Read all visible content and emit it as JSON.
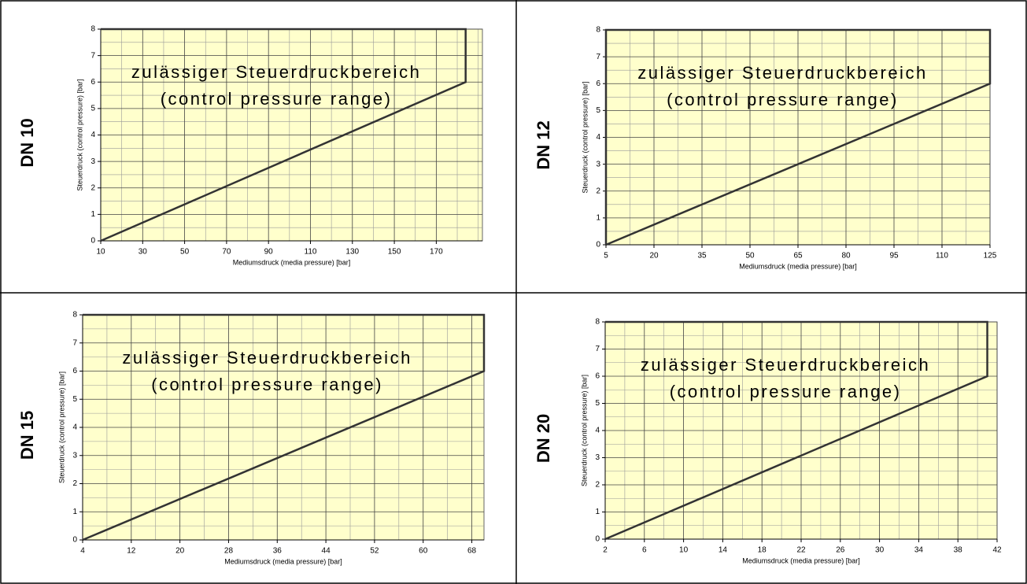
{
  "chart_data": [
    {
      "type": "line",
      "label": "DN 10",
      "annotation": [
        "zulässiger Steuerdruckbereich",
        "(control pressure range)"
      ],
      "xlabel": "Mediumsdruck (media pressure) [bar]",
      "ylabel": "Steuerdruck (control pressure) [bar]",
      "x": [
        10,
        184,
        184,
        10
      ],
      "values": [
        0,
        6,
        8,
        8
      ],
      "color": "#333333",
      "xlim": [
        10,
        192
      ],
      "xticks": [
        10,
        30,
        50,
        70,
        90,
        110,
        130,
        150,
        170
      ],
      "ylim": [
        0,
        8
      ],
      "yticks": [
        0,
        1,
        2,
        3,
        4,
        5,
        6,
        7,
        8
      ],
      "grid": true
    },
    {
      "type": "line",
      "label": "DN 12",
      "annotation": [
        "zulässiger Steuerdruckbereich",
        "(control pressure range)"
      ],
      "xlabel": "Mediumsdruck (media pressure) [bar]",
      "ylabel": "Steuerdruck (control pressure) [bar]",
      "x": [
        5,
        125,
        125,
        5,
        5
      ],
      "values": [
        0,
        6,
        8,
        8,
        0
      ],
      "color": "#333333",
      "xlim": [
        5,
        125
      ],
      "xticks": [
        5,
        20,
        35,
        50,
        65,
        80,
        95,
        110,
        125
      ],
      "ylim": [
        0,
        8
      ],
      "yticks": [
        0,
        1,
        2,
        3,
        4,
        5,
        6,
        7,
        8
      ],
      "grid": true
    },
    {
      "type": "line",
      "label": "DN 15",
      "annotation": [
        "zulässiger Steuerdruckbereich",
        "(control pressure range)"
      ],
      "xlabel": "Mediumsdruck (media pressure) [bar]",
      "ylabel": "Steuerdruck (control pressure) [bar]",
      "x": [
        4,
        70,
        70,
        4
      ],
      "values": [
        0,
        6,
        8,
        8
      ],
      "color": "#333333",
      "xlim": [
        4,
        70
      ],
      "xticks": [
        4,
        12,
        20,
        28,
        36,
        44,
        52,
        60,
        68
      ],
      "ylim": [
        0,
        8
      ],
      "yticks": [
        0,
        1,
        2,
        3,
        4,
        5,
        6,
        7,
        8
      ],
      "grid": true
    },
    {
      "type": "line",
      "label": "DN 20",
      "annotation": [
        "zulässiger Steuerdruckbereich",
        "(control pressure range)"
      ],
      "xlabel": "Mediumsdruck (media pressure) [bar]",
      "ylabel": "Steuerdruck (control pressure) [bar]",
      "x": [
        2,
        41,
        41,
        2
      ],
      "values": [
        0,
        6,
        8,
        8
      ],
      "color": "#333333",
      "xlim": [
        2,
        42
      ],
      "xticks": [
        2,
        6,
        10,
        14,
        18,
        22,
        26,
        30,
        34,
        38,
        42
      ],
      "ylim": [
        0,
        8
      ],
      "yticks": [
        0,
        1,
        2,
        3,
        4,
        5,
        6,
        7,
        8
      ],
      "grid": true
    }
  ]
}
